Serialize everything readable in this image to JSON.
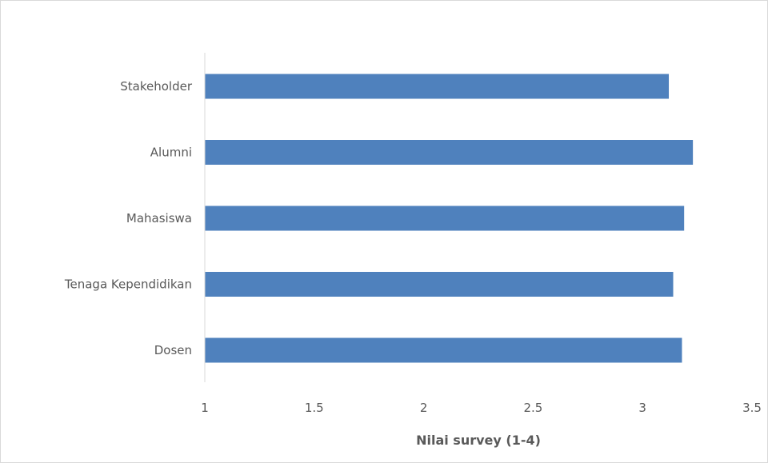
{
  "chart_data": {
    "type": "bar",
    "orientation": "horizontal",
    "categories": [
      "Stakeholder",
      "Alumni",
      "Mahasiswa",
      "Tenaga Kependidikan",
      "Dosen"
    ],
    "values": [
      3.12,
      3.23,
      3.19,
      3.14,
      3.18
    ],
    "title": "",
    "xlabel": "Nilai survey (1-4)",
    "ylabel": "",
    "xlim": [
      1,
      3.5
    ],
    "x_ticks": [
      "1",
      "1.5",
      "2",
      "2.5",
      "3",
      "3.5"
    ],
    "x_tick_values": [
      1,
      1.5,
      2,
      2.5,
      3,
      3.5
    ],
    "grid": false,
    "legend": "none",
    "colors": {
      "bar": "#4f81bd",
      "axis": "#d9d9d9",
      "text": "#595959"
    }
  }
}
